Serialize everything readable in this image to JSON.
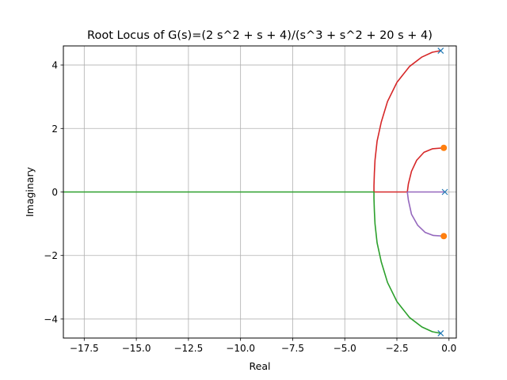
{
  "chart_data": {
    "type": "line",
    "title": "Root Locus of G(s)=(2 s^2 + s + 4)/(s^3 + s^2 + 20 s + 4)",
    "xlabel": "Real",
    "ylabel": "Imaginary",
    "xlim": [
      -18.5,
      0.35
    ],
    "ylim": [
      -4.6,
      4.6
    ],
    "xticks": [
      -17.5,
      -15.0,
      -12.5,
      -10.0,
      -7.5,
      -5.0,
      -2.5,
      0.0
    ],
    "xtick_labels": [
      "−17.5",
      "−15.0",
      "−12.5",
      "−10.0",
      "−7.5",
      "−5.0",
      "−2.5",
      "0.0"
    ],
    "yticks": [
      -4,
      -2,
      0,
      2,
      4
    ],
    "ytick_labels": [
      "−4",
      "−2",
      "0",
      "2",
      "4"
    ],
    "grid": true,
    "colors": {
      "upper_branch": "#d62728",
      "lower_branch": "#2ca02c",
      "real_branch": "#9467bd",
      "poles": "#1f77b4",
      "zeros": "#ff7f0e"
    },
    "poles": [
      {
        "x": -0.2,
        "y": 0.0
      },
      {
        "x": -0.4,
        "y": 4.45
      },
      {
        "x": -0.4,
        "y": -4.45
      }
    ],
    "zeros": [
      {
        "x": -0.25,
        "y": 1.39
      },
      {
        "x": -0.25,
        "y": -1.39
      }
    ],
    "series": [
      {
        "id": "upper",
        "color": "#d62728",
        "points": [
          [
            -0.4,
            4.45
          ],
          [
            -0.8,
            4.4
          ],
          [
            -1.3,
            4.25
          ],
          [
            -1.9,
            3.95
          ],
          [
            -2.5,
            3.45
          ],
          [
            -2.95,
            2.85
          ],
          [
            -3.25,
            2.2
          ],
          [
            -3.45,
            1.6
          ],
          [
            -3.55,
            1.0
          ],
          [
            -3.58,
            0.6
          ],
          [
            -3.6,
            0.2
          ],
          [
            -3.6,
            0.0
          ],
          [
            -3.0,
            0.0
          ],
          [
            -2.5,
            0.0
          ],
          [
            -2.0,
            0.0
          ],
          [
            -1.95,
            0.25
          ],
          [
            -1.8,
            0.65
          ],
          [
            -1.55,
            1.0
          ],
          [
            -1.2,
            1.25
          ],
          [
            -0.8,
            1.36
          ],
          [
            -0.25,
            1.39
          ]
        ]
      },
      {
        "id": "lower",
        "color": "#2ca02c",
        "points": [
          [
            -0.4,
            -4.45
          ],
          [
            -0.8,
            -4.4
          ],
          [
            -1.3,
            -4.25
          ],
          [
            -1.9,
            -3.95
          ],
          [
            -2.5,
            -3.45
          ],
          [
            -2.95,
            -2.85
          ],
          [
            -3.25,
            -2.2
          ],
          [
            -3.45,
            -1.6
          ],
          [
            -3.55,
            -1.0
          ],
          [
            -3.58,
            -0.6
          ],
          [
            -3.6,
            -0.2
          ],
          [
            -3.6,
            0.0
          ],
          [
            -5.0,
            0.0
          ],
          [
            -10.0,
            0.0
          ],
          [
            -15.0,
            0.0
          ],
          [
            -18.5,
            0.0
          ]
        ]
      },
      {
        "id": "real",
        "color": "#9467bd",
        "points": [
          [
            -0.2,
            0.0
          ],
          [
            -1.0,
            0.0
          ],
          [
            -1.7,
            0.0
          ],
          [
            -2.0,
            0.0
          ],
          [
            -1.95,
            -0.25
          ],
          [
            -1.8,
            -0.7
          ],
          [
            -1.5,
            -1.05
          ],
          [
            -1.15,
            -1.27
          ],
          [
            -0.75,
            -1.37
          ],
          [
            -0.25,
            -1.39
          ]
        ]
      }
    ]
  }
}
